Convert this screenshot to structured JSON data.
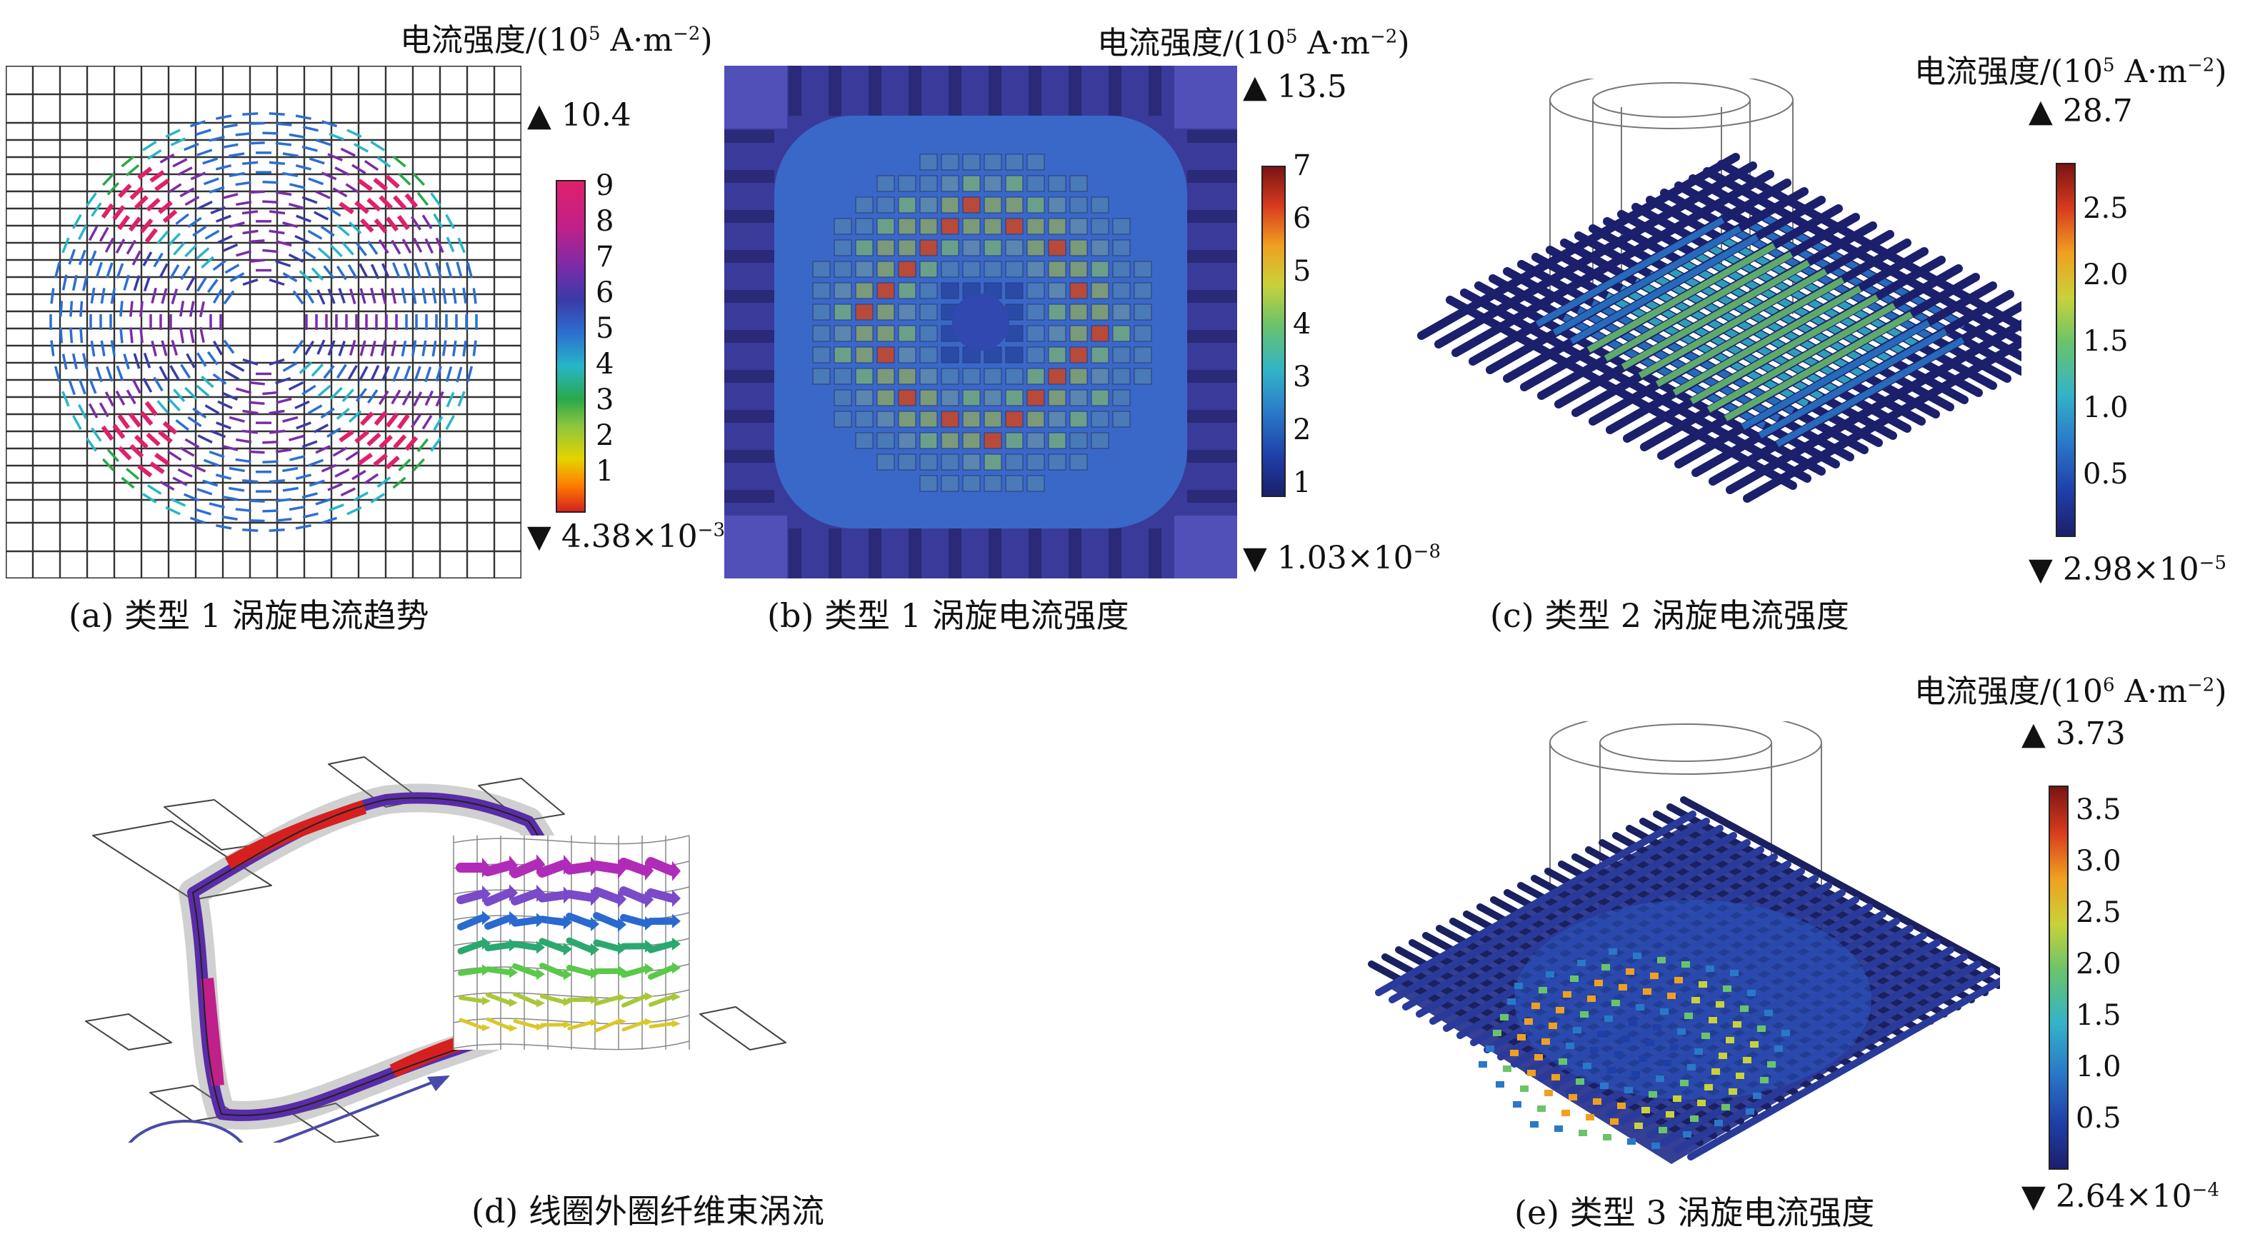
{
  "panels": {
    "a": {
      "caption": "(a) 类型 1 涡旋电流趋势",
      "unit_prefix": "电流强度/(10",
      "unit_exp": "5",
      "unit_suffix": " A·m",
      "unit_suffix_exp": "−2",
      "unit_close": ")",
      "max": "▲ 10.4",
      "min_base": "▼ 4.38×10",
      "min_exp": "−3",
      "ticks": [
        "9",
        "8",
        "7",
        "6",
        "5",
        "4",
        "3",
        "2",
        "1"
      ]
    },
    "b": {
      "caption": "(b) 类型 1 涡旋电流强度",
      "unit_prefix": "电流强度/(10",
      "unit_exp": "5",
      "unit_suffix": " A·m",
      "unit_suffix_exp": "−2",
      "unit_close": ")",
      "max": "▲ 13.5",
      "min_base": "▼ 1.03×10",
      "min_exp": "−8",
      "ticks": [
        "7",
        "6",
        "5",
        "4",
        "3",
        "2",
        "1"
      ]
    },
    "c": {
      "caption": "(c) 类型 2 涡旋电流强度",
      "unit_prefix": "电流强度/(10",
      "unit_exp": "5",
      "unit_suffix": " A·m",
      "unit_suffix_exp": "−2",
      "unit_close": ")",
      "max": "▲ 28.7",
      "min_base": "▼ 2.98×10",
      "min_exp": "−5",
      "ticks": [
        "2.5",
        "2.0",
        "1.5",
        "1.0",
        "0.5"
      ]
    },
    "d": {
      "caption": "(d) 线圈外圈纤维束涡流"
    },
    "e": {
      "caption": "(e) 类型 3 涡旋电流强度",
      "unit_prefix": "电流强度/(10",
      "unit_exp": "6",
      "unit_suffix": " A·m",
      "unit_suffix_exp": "−2",
      "unit_close": ")",
      "max": "▲ 3.73",
      "min_base": "▼ 2.64×10",
      "min_exp": "−4",
      "ticks": [
        "3.5",
        "3.0",
        "2.5",
        "2.0",
        "1.5",
        "1.0",
        "0.5"
      ]
    }
  },
  "colors": {
    "a_bar": [
      "#d62020",
      "#ff7f00",
      "#e5d400",
      "#8bc53f",
      "#2aa84a",
      "#26b6c8",
      "#2c6fd0",
      "#3a3aa8",
      "#7a2ca8",
      "#c0208a",
      "#e0206a"
    ],
    "jet": [
      "#1c1f6b",
      "#1f3fa8",
      "#2a78c8",
      "#33b3c8",
      "#6ac36b",
      "#c8d23a",
      "#f0a020",
      "#d83c1e",
      "#7a1414"
    ],
    "fiber_dark": "#1a2060",
    "b_bg": "#3a3a9a",
    "b_inner": "#3a68c8"
  }
}
